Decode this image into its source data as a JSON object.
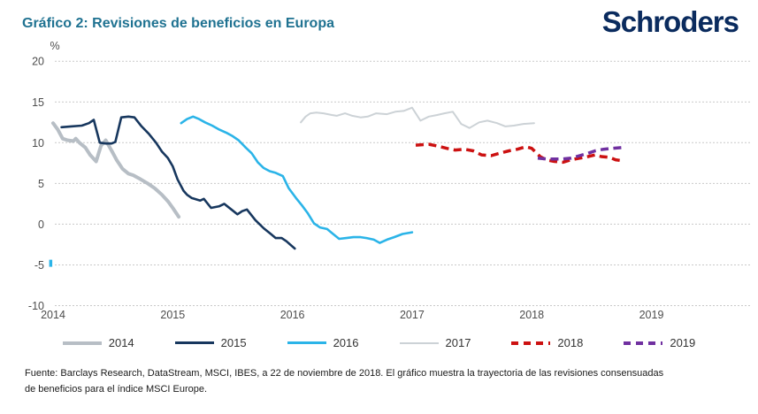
{
  "header": {
    "title": "Gráfico 2: Revisiones de beneficios en Europa",
    "logo": "Schroders"
  },
  "brand": {
    "title_color": "#1f7291",
    "logo_color": "#0a2b5e"
  },
  "footer": {
    "line1": "Fuente: Barclays Research, DataStream, MSCI, IBES, a 22 de noviembre de 2018. El gráfico muestra la trayectoria de las revisiones consensuadas",
    "line2": "de beneficios para el índice MSCI Europe."
  },
  "chart_data": {
    "type": "line",
    "title": "Gráfico 2: Revisiones de beneficios en Europa",
    "xlabel": "",
    "ylabel": "%",
    "ylim": [
      -10,
      20
    ],
    "xlim": [
      2014,
      2019.85
    ],
    "yticks": [
      20,
      15,
      10,
      5,
      0,
      -5,
      -10
    ],
    "xticks": [
      2014,
      2015,
      2016,
      2017,
      2018,
      2019
    ],
    "grid": "horizontal-dashed",
    "grid_color": "#c9c9c9",
    "axis_color": "#4d4d4d",
    "legend_position": "bottom",
    "stray_mark": {
      "year": 2013.98,
      "value": -4.8,
      "color": "#2bb4e8"
    },
    "series": [
      {
        "name": "2014",
        "color": "#b7bec5",
        "width": 4,
        "dash": null,
        "points": [
          [
            2014.0,
            12.4
          ],
          [
            2014.04,
            11.6
          ],
          [
            2014.08,
            10.5
          ],
          [
            2014.12,
            10.3
          ],
          [
            2014.17,
            10.2
          ],
          [
            2014.19,
            10.5
          ],
          [
            2014.22,
            10.0
          ],
          [
            2014.27,
            9.4
          ],
          [
            2014.31,
            8.5
          ],
          [
            2014.36,
            7.7
          ],
          [
            2014.4,
            9.6
          ],
          [
            2014.44,
            10.3
          ],
          [
            2014.49,
            9.0
          ],
          [
            2014.53,
            7.9
          ],
          [
            2014.58,
            6.8
          ],
          [
            2014.63,
            6.2
          ],
          [
            2014.67,
            6.0
          ],
          [
            2014.72,
            5.6
          ],
          [
            2014.79,
            5.0
          ],
          [
            2014.85,
            4.4
          ],
          [
            2014.91,
            3.6
          ],
          [
            2014.96,
            2.8
          ],
          [
            2015.0,
            2.0
          ],
          [
            2015.05,
            0.9
          ]
        ]
      },
      {
        "name": "2015",
        "color": "#17375e",
        "width": 2.6,
        "dash": null,
        "points": [
          [
            2014.07,
            11.9
          ],
          [
            2014.15,
            12.0
          ],
          [
            2014.24,
            12.1
          ],
          [
            2014.3,
            12.4
          ],
          [
            2014.34,
            12.8
          ],
          [
            2014.39,
            10.0
          ],
          [
            2014.44,
            9.9
          ],
          [
            2014.49,
            9.9
          ],
          [
            2014.52,
            10.1
          ],
          [
            2014.57,
            13.1
          ],
          [
            2014.63,
            13.2
          ],
          [
            2014.68,
            13.1
          ],
          [
            2014.74,
            12.0
          ],
          [
            2014.8,
            11.1
          ],
          [
            2014.86,
            10.0
          ],
          [
            2014.91,
            8.9
          ],
          [
            2014.96,
            8.1
          ],
          [
            2015.0,
            7.1
          ],
          [
            2015.04,
            5.5
          ],
          [
            2015.09,
            4.1
          ],
          [
            2015.12,
            3.6
          ],
          [
            2015.16,
            3.2
          ],
          [
            2015.23,
            2.9
          ],
          [
            2015.26,
            3.1
          ],
          [
            2015.32,
            2.0
          ],
          [
            2015.39,
            2.2
          ],
          [
            2015.43,
            2.5
          ],
          [
            2015.49,
            1.8
          ],
          [
            2015.54,
            1.2
          ],
          [
            2015.58,
            1.6
          ],
          [
            2015.62,
            1.8
          ],
          [
            2015.69,
            0.5
          ],
          [
            2015.76,
            -0.5
          ],
          [
            2015.82,
            -1.2
          ],
          [
            2015.86,
            -1.7
          ],
          [
            2015.91,
            -1.7
          ],
          [
            2015.95,
            -2.1
          ],
          [
            2016.02,
            -3.0
          ]
        ]
      },
      {
        "name": "2016",
        "color": "#2bb4e8",
        "width": 2.6,
        "dash": null,
        "points": [
          [
            2015.07,
            12.4
          ],
          [
            2015.12,
            12.9
          ],
          [
            2015.17,
            13.2
          ],
          [
            2015.22,
            12.9
          ],
          [
            2015.27,
            12.5
          ],
          [
            2015.33,
            12.1
          ],
          [
            2015.39,
            11.6
          ],
          [
            2015.45,
            11.2
          ],
          [
            2015.5,
            10.8
          ],
          [
            2015.55,
            10.3
          ],
          [
            2015.61,
            9.4
          ],
          [
            2015.66,
            8.7
          ],
          [
            2015.71,
            7.6
          ],
          [
            2015.76,
            6.9
          ],
          [
            2015.81,
            6.5
          ],
          [
            2015.86,
            6.3
          ],
          [
            2015.92,
            5.9
          ],
          [
            2015.97,
            4.4
          ],
          [
            2016.03,
            3.2
          ],
          [
            2016.08,
            2.3
          ],
          [
            2016.13,
            1.3
          ],
          [
            2016.18,
            0.1
          ],
          [
            2016.23,
            -0.4
          ],
          [
            2016.29,
            -0.6
          ],
          [
            2016.34,
            -1.2
          ],
          [
            2016.39,
            -1.8
          ],
          [
            2016.45,
            -1.7
          ],
          [
            2016.51,
            -1.6
          ],
          [
            2016.57,
            -1.6
          ],
          [
            2016.62,
            -1.7
          ],
          [
            2016.68,
            -1.9
          ],
          [
            2016.73,
            -2.3
          ],
          [
            2016.79,
            -1.9
          ],
          [
            2016.85,
            -1.6
          ],
          [
            2016.92,
            -1.2
          ],
          [
            2017.0,
            -1.0
          ]
        ]
      },
      {
        "name": "2017",
        "color": "#ccd2d6",
        "width": 2,
        "dash": null,
        "points": [
          [
            2016.07,
            12.5
          ],
          [
            2016.11,
            13.2
          ],
          [
            2016.15,
            13.6
          ],
          [
            2016.2,
            13.7
          ],
          [
            2016.26,
            13.6
          ],
          [
            2016.33,
            13.4
          ],
          [
            2016.37,
            13.3
          ],
          [
            2016.44,
            13.6
          ],
          [
            2016.5,
            13.3
          ],
          [
            2016.57,
            13.1
          ],
          [
            2016.63,
            13.2
          ],
          [
            2016.7,
            13.6
          ],
          [
            2016.79,
            13.5
          ],
          [
            2016.86,
            13.8
          ],
          [
            2016.93,
            13.9
          ],
          [
            2017.0,
            14.3
          ],
          [
            2017.07,
            12.7
          ],
          [
            2017.14,
            13.2
          ],
          [
            2017.21,
            13.4
          ],
          [
            2017.27,
            13.6
          ],
          [
            2017.34,
            13.8
          ],
          [
            2017.41,
            12.3
          ],
          [
            2017.48,
            11.8
          ],
          [
            2017.56,
            12.5
          ],
          [
            2017.63,
            12.7
          ],
          [
            2017.71,
            12.4
          ],
          [
            2017.78,
            12.0
          ],
          [
            2017.85,
            12.1
          ],
          [
            2017.93,
            12.3
          ],
          [
            2018.02,
            12.4
          ]
        ]
      },
      {
        "name": "2018",
        "color": "#cc1111",
        "width": 3.5,
        "dash": "9 5.5",
        "points": [
          [
            2017.03,
            9.7
          ],
          [
            2017.14,
            9.8
          ],
          [
            2017.21,
            9.6
          ],
          [
            2017.29,
            9.3
          ],
          [
            2017.36,
            9.1
          ],
          [
            2017.44,
            9.2
          ],
          [
            2017.51,
            9.0
          ],
          [
            2017.58,
            8.5
          ],
          [
            2017.66,
            8.4
          ],
          [
            2017.73,
            8.7
          ],
          [
            2017.81,
            9.0
          ],
          [
            2017.88,
            9.2
          ],
          [
            2017.95,
            9.5
          ],
          [
            2018.0,
            9.3
          ],
          [
            2018.07,
            8.3
          ],
          [
            2018.12,
            7.9
          ],
          [
            2018.19,
            7.7
          ],
          [
            2018.26,
            7.6
          ],
          [
            2018.33,
            7.9
          ],
          [
            2018.4,
            8.1
          ],
          [
            2018.47,
            8.3
          ],
          [
            2018.53,
            8.5
          ],
          [
            2018.58,
            8.3
          ],
          [
            2018.65,
            8.2
          ],
          [
            2018.7,
            7.9
          ],
          [
            2018.75,
            7.8
          ]
        ]
      },
      {
        "name": "2019",
        "color": "#7030a0",
        "width": 3.5,
        "dash": "9 5.5",
        "points": [
          [
            2018.05,
            8.1
          ],
          [
            2018.12,
            8.0
          ],
          [
            2018.19,
            8.0
          ],
          [
            2018.26,
            8.0
          ],
          [
            2018.33,
            8.1
          ],
          [
            2018.4,
            8.4
          ],
          [
            2018.47,
            8.7
          ],
          [
            2018.53,
            9.0
          ],
          [
            2018.6,
            9.2
          ],
          [
            2018.67,
            9.3
          ],
          [
            2018.75,
            9.4
          ]
        ]
      }
    ]
  }
}
